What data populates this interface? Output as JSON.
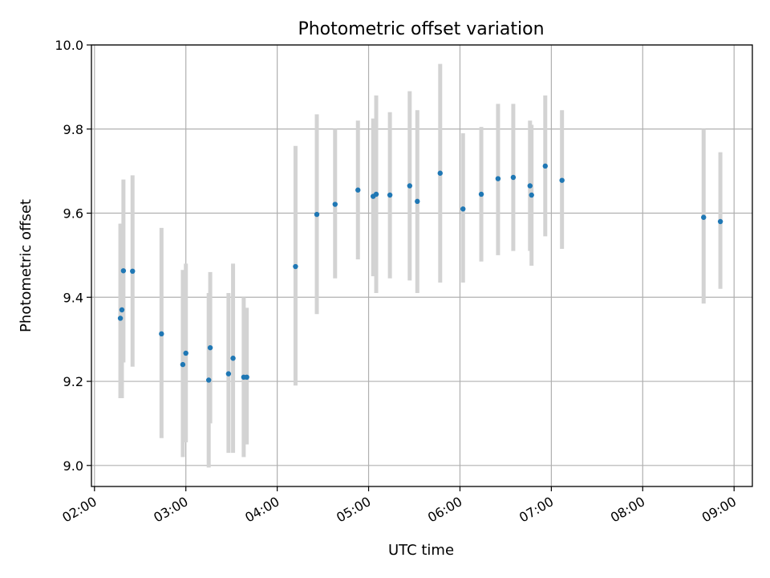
{
  "chart_data": {
    "type": "scatter",
    "title": "Photometric offset variation",
    "xlabel": "UTC time",
    "ylabel": "Photometric offset",
    "x_ticks": [
      "02:00",
      "03:00",
      "04:00",
      "05:00",
      "06:00",
      "07:00",
      "08:00",
      "09:00"
    ],
    "y_ticks": [
      "9.0",
      "9.2",
      "9.4",
      "9.6",
      "9.8",
      "10.0"
    ],
    "xlim": [
      "01:58",
      "09:12"
    ],
    "ylim": [
      8.95,
      10.0
    ],
    "grid": true,
    "colors": {
      "points": "#1f77b4",
      "errorbars": "#d3d3d3",
      "grid": "#b0b0b0"
    },
    "points": [
      {
        "x": "02:17",
        "y": 9.35,
        "lo": 9.16,
        "hi": 9.575
      },
      {
        "x": "02:18",
        "y": 9.37,
        "lo": 9.16,
        "hi": 9.575
      },
      {
        "x": "02:19",
        "y": 9.463,
        "lo": 9.245,
        "hi": 9.68
      },
      {
        "x": "02:25",
        "y": 9.462,
        "lo": 9.235,
        "hi": 9.69
      },
      {
        "x": "02:44",
        "y": 9.313,
        "lo": 9.065,
        "hi": 9.565
      },
      {
        "x": "02:58",
        "y": 9.24,
        "lo": 9.02,
        "hi": 9.465
      },
      {
        "x": "03:00",
        "y": 9.267,
        "lo": 9.055,
        "hi": 9.48
      },
      {
        "x": "03:15",
        "y": 9.203,
        "lo": 8.995,
        "hi": 9.41
      },
      {
        "x": "03:16",
        "y": 9.28,
        "lo": 9.1,
        "hi": 9.46
      },
      {
        "x": "03:28",
        "y": 9.218,
        "lo": 9.03,
        "hi": 9.41
      },
      {
        "x": "03:31",
        "y": 9.255,
        "lo": 9.03,
        "hi": 9.48
      },
      {
        "x": "03:38",
        "y": 9.21,
        "lo": 9.02,
        "hi": 9.4
      },
      {
        "x": "03:40",
        "y": 9.21,
        "lo": 9.05,
        "hi": 9.375
      },
      {
        "x": "04:12",
        "y": 9.473,
        "lo": 9.19,
        "hi": 9.76
      },
      {
        "x": "04:26",
        "y": 9.597,
        "lo": 9.36,
        "hi": 9.835
      },
      {
        "x": "04:38",
        "y": 9.621,
        "lo": 9.445,
        "hi": 9.8
      },
      {
        "x": "04:53",
        "y": 9.655,
        "lo": 9.49,
        "hi": 9.82
      },
      {
        "x": "05:03",
        "y": 9.64,
        "lo": 9.45,
        "hi": 9.825
      },
      {
        "x": "05:05",
        "y": 9.645,
        "lo": 9.41,
        "hi": 9.88
      },
      {
        "x": "05:14",
        "y": 9.643,
        "lo": 9.445,
        "hi": 9.84
      },
      {
        "x": "05:27",
        "y": 9.665,
        "lo": 9.44,
        "hi": 9.89
      },
      {
        "x": "05:32",
        "y": 9.628,
        "lo": 9.41,
        "hi": 9.845
      },
      {
        "x": "05:47",
        "y": 9.695,
        "lo": 9.435,
        "hi": 9.955
      },
      {
        "x": "06:02",
        "y": 9.61,
        "lo": 9.435,
        "hi": 9.79
      },
      {
        "x": "06:14",
        "y": 9.645,
        "lo": 9.485,
        "hi": 9.805
      },
      {
        "x": "06:25",
        "y": 9.682,
        "lo": 9.5,
        "hi": 9.86
      },
      {
        "x": "06:35",
        "y": 9.685,
        "lo": 9.51,
        "hi": 9.86
      },
      {
        "x": "06:46",
        "y": 9.665,
        "lo": 9.51,
        "hi": 9.82
      },
      {
        "x": "06:47",
        "y": 9.643,
        "lo": 9.475,
        "hi": 9.81
      },
      {
        "x": "06:56",
        "y": 9.712,
        "lo": 9.545,
        "hi": 9.88
      },
      {
        "x": "07:07",
        "y": 9.678,
        "lo": 9.515,
        "hi": 9.845
      },
      {
        "x": "08:40",
        "y": 9.59,
        "lo": 9.385,
        "hi": 9.8
      },
      {
        "x": "08:51",
        "y": 9.58,
        "lo": 9.42,
        "hi": 9.745
      }
    ]
  }
}
